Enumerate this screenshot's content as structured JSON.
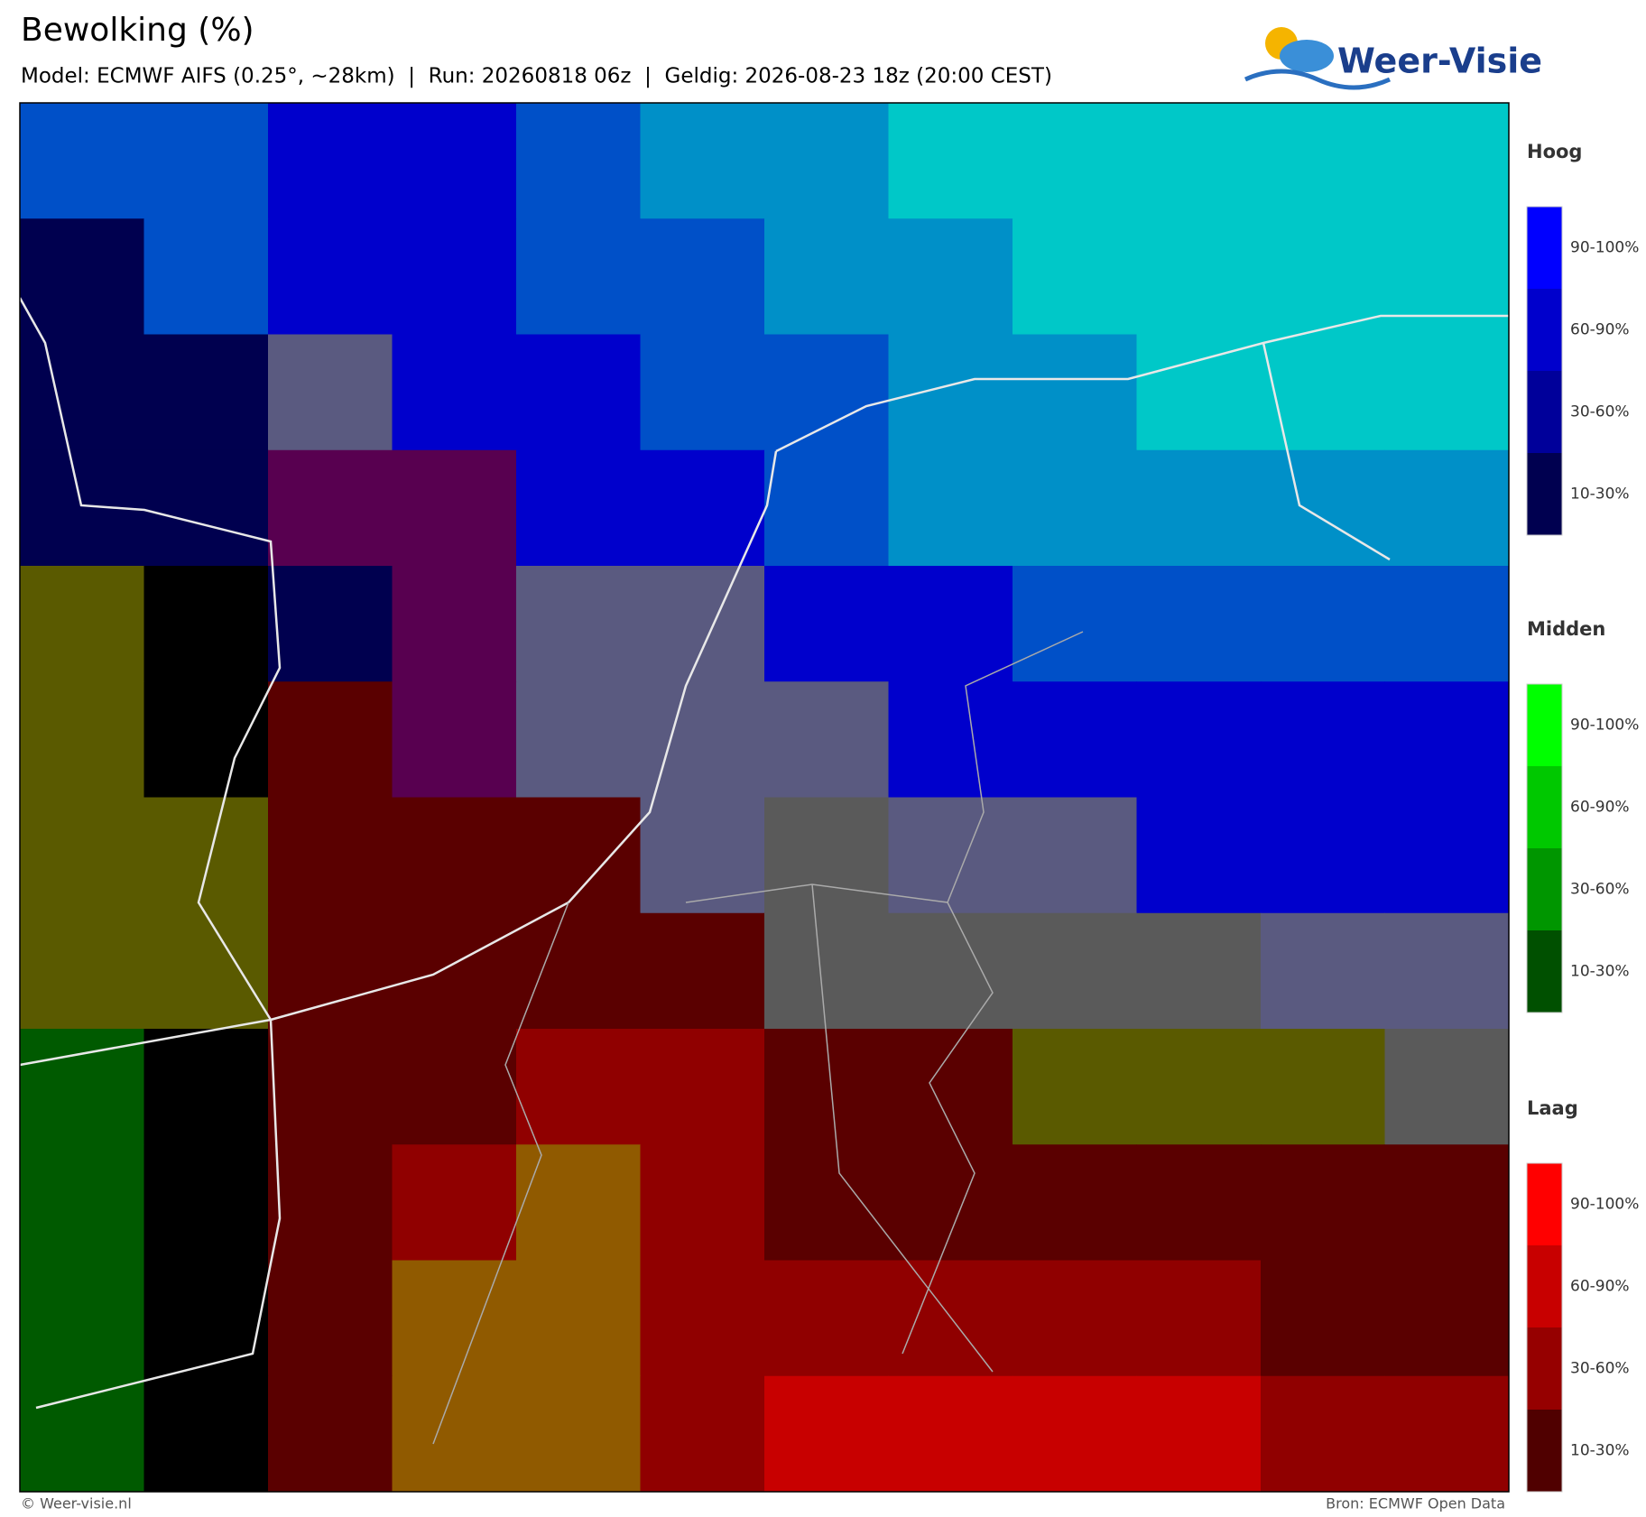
{
  "header": {
    "title": "Bewolking (%)",
    "subtitle": "Model: ECMWF AIFS (0.25°, ~28km)  |  Run: 20260818 06z  |  Geldig: 2026-08-23 18z (20:00 CEST)"
  },
  "logo": {
    "text": "Weer-Visie"
  },
  "legend": [
    {
      "title": "Hoog",
      "items": [
        "90-100%",
        "60-90%",
        "30-60%",
        "10-30%"
      ]
    },
    {
      "title": "Midden",
      "items": [
        "90-100%",
        "60-90%",
        "30-60%",
        "10-30%"
      ]
    },
    {
      "title": "Laag",
      "items": [
        "90-100%",
        "60-90%",
        "30-60%",
        "10-30%"
      ]
    }
  ],
  "footer": {
    "left": "© Weer-visie.nl",
    "right": "Bron: ECMWF Open Data"
  }
}
